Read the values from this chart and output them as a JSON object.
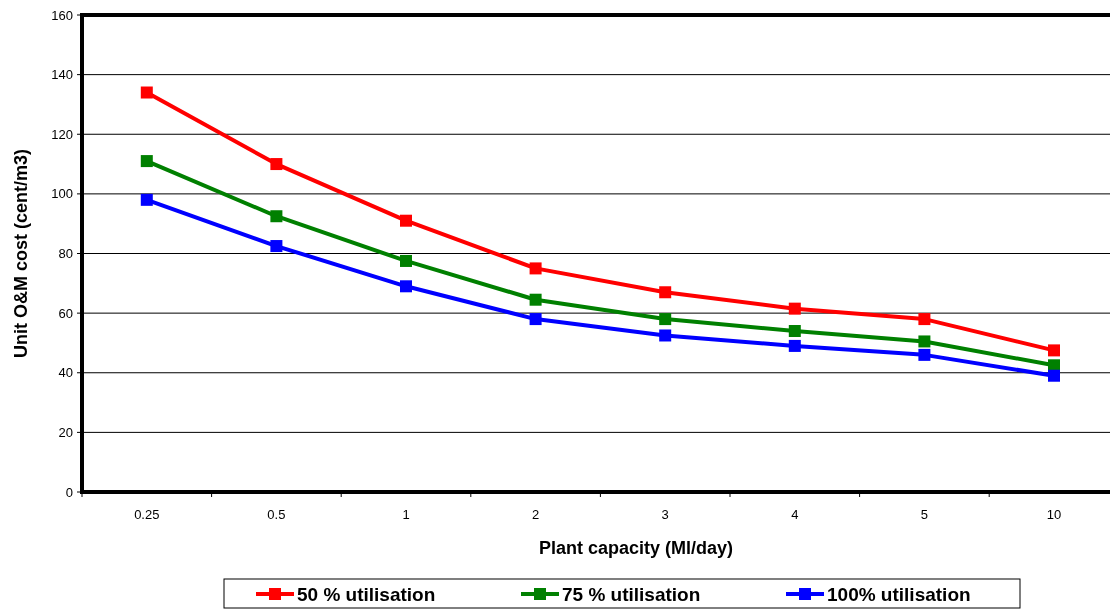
{
  "chart_data": {
    "type": "line",
    "xlabel": "Plant capacity (Ml/day)",
    "ylabel": "Unit O&M cost (cent/m3)",
    "categories": [
      "0.25",
      "0.5",
      "1",
      "2",
      "3",
      "4",
      "5",
      "10"
    ],
    "series": [
      {
        "name": "50 % utilisation",
        "color": "#ff0000",
        "values": [
          134,
          110,
          91,
          75,
          67,
          61.5,
          58,
          47.5
        ]
      },
      {
        "name": "75 % utilisation",
        "color": "#008000",
        "values": [
          111,
          92.5,
          77.5,
          64.5,
          58,
          54,
          50.5,
          42.5
        ]
      },
      {
        "name": "100% utilisation",
        "color": "#0000ff",
        "values": [
          98,
          82.5,
          69,
          58,
          52.5,
          49,
          46,
          39
        ]
      }
    ],
    "ylim": [
      0,
      160
    ],
    "yticks": [
      0,
      20,
      40,
      60,
      80,
      100,
      120,
      140,
      160
    ],
    "grid": "y",
    "legend": "bottom",
    "marker": "square",
    "line_style": "solid"
  }
}
